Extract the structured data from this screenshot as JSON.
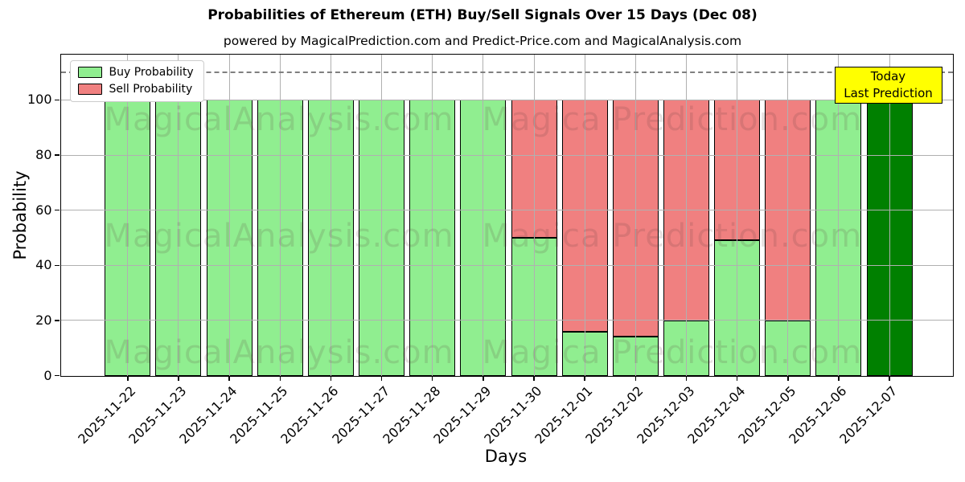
{
  "header": {
    "title": "Probabilities of Ethereum (ETH) Buy/Sell Signals Over 15 Days (Dec 08)",
    "subtitle": "powered by MagicalPrediction.com and Predict-Price.com and MagicalAnalysis.com"
  },
  "legend": {
    "buy_label": "Buy Probability",
    "sell_label": "Sell Probability"
  },
  "annotation": {
    "line1": "Today",
    "line2": "Last Prediction",
    "bg_color": "#ffff00"
  },
  "watermarks": {
    "left": "MagicalAnalysis.com",
    "right": "Magica Prediction.com"
  },
  "axes": {
    "xlabel": "Days",
    "ylabel": "Probability",
    "yticks": [
      0,
      20,
      40,
      60,
      80,
      100
    ],
    "ylim": [
      0,
      116.6
    ],
    "dashed_line_y": 110,
    "grid": "on"
  },
  "colors": {
    "buy": "#90EE90",
    "sell": "#F08080",
    "today_bar": "#008000",
    "edge": "#000000",
    "grid": "#b0b0b0",
    "dashed_line": "#7f7f7f",
    "annotation_bg": "#ffff00"
  },
  "chart_data": {
    "type": "bar",
    "stacked": true,
    "title": "Probabilities of Ethereum (ETH) Buy/Sell Signals Over 15 Days (Dec 08)",
    "xlabel": "Days",
    "ylabel": "Probability",
    "ylim": [
      0,
      116.6
    ],
    "legend_position": "upper left",
    "grid": true,
    "categories": [
      "2025-11-22",
      "2025-11-23",
      "2025-11-24",
      "2025-11-25",
      "2025-11-26",
      "2025-11-27",
      "2025-11-28",
      "2025-11-29",
      "2025-11-30",
      "2025-12-01",
      "2025-12-02",
      "2025-12-03",
      "2025-12-04",
      "2025-12-05",
      "2025-12-06",
      "2025-12-07"
    ],
    "series": [
      {
        "name": "Buy Probability",
        "color": "#90EE90",
        "values": [
          100,
          100,
          100,
          100,
          100,
          100,
          100,
          100,
          50,
          16,
          14,
          20,
          49,
          20,
          100,
          100
        ]
      },
      {
        "name": "Sell Probability",
        "color": "#F08080",
        "values": [
          0,
          0,
          0,
          0,
          0,
          0,
          0,
          0,
          50,
          84,
          86,
          80,
          51,
          80,
          0,
          0
        ]
      }
    ],
    "today_index": 15,
    "today_bar_color": "#008000"
  }
}
